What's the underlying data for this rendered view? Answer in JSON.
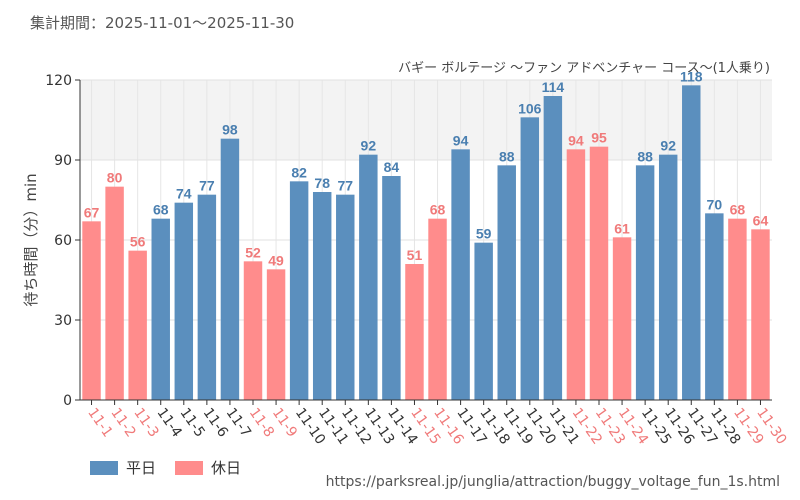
{
  "period_label": "集計期間：2025-11-01～2025-11-30",
  "source_url": "https://parksreal.jp/junglia/attraction/buggy_voltage_fun_1s.html",
  "legend": [
    {
      "label": "平日",
      "color": "#5b8fbe"
    },
    {
      "label": "休日",
      "color": "#ff8c8c"
    }
  ],
  "chart_data": {
    "type": "bar",
    "title": "バギー ボルテージ 〜ファン アドベンチャー コース〜(1人乗り)",
    "ylabel": "待ち時間（分）min",
    "xlabel": "",
    "ylim": [
      0,
      120
    ],
    "yticks": [
      0,
      30,
      60,
      90,
      120
    ],
    "categories": [
      "11-1",
      "11-2",
      "11-3",
      "11-4",
      "11-5",
      "11-6",
      "11-7",
      "11-8",
      "11-9",
      "11-10",
      "11-11",
      "11-12",
      "11-13",
      "11-14",
      "11-15",
      "11-16",
      "11-17",
      "11-18",
      "11-19",
      "11-20",
      "11-21",
      "11-22",
      "11-23",
      "11-24",
      "11-25",
      "11-26",
      "11-27",
      "11-28",
      "11-29",
      "11-30"
    ],
    "values": [
      67,
      80,
      56,
      68,
      74,
      77,
      98,
      52,
      49,
      82,
      78,
      77,
      92,
      84,
      51,
      68,
      94,
      59,
      88,
      106,
      114,
      94,
      95,
      61,
      88,
      92,
      118,
      70,
      68,
      64
    ],
    "day_type": [
      "休日",
      "休日",
      "休日",
      "平日",
      "平日",
      "平日",
      "平日",
      "休日",
      "休日",
      "平日",
      "平日",
      "平日",
      "平日",
      "平日",
      "休日",
      "休日",
      "平日",
      "平日",
      "平日",
      "平日",
      "平日",
      "休日",
      "休日",
      "休日",
      "平日",
      "平日",
      "平日",
      "平日",
      "休日",
      "休日"
    ],
    "colors": {
      "平日": "#5b8fbe",
      "休日": "#ff8c8c"
    },
    "label_colors": {
      "平日": "#4a7fb0",
      "休日": "#f07a7a"
    },
    "grid": true
  }
}
